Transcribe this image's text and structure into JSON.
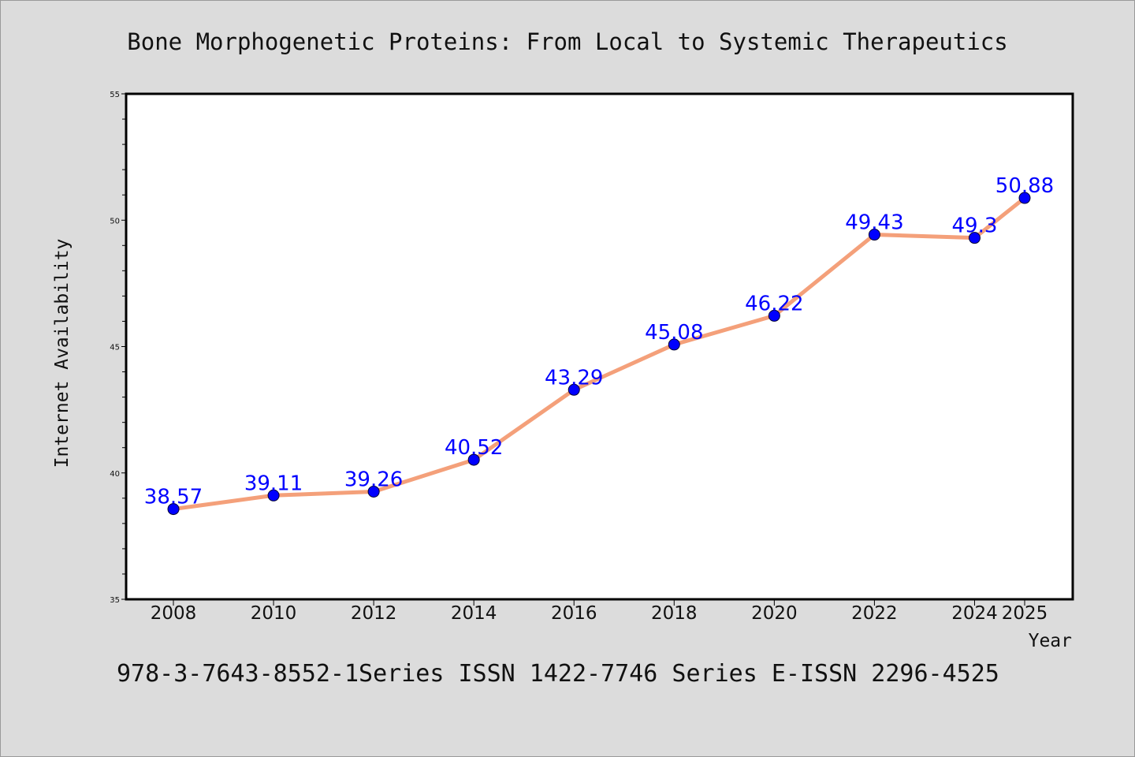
{
  "chart_data": {
    "type": "line",
    "title": "Bone Morphogenetic Proteins: From Local to Systemic Therapeutics",
    "xlabel": "Year",
    "ylabel": "Internet Availability",
    "categories": [
      "2008",
      "2010",
      "2012",
      "2014",
      "2016",
      "2018",
      "2020",
      "2022",
      "2024",
      "2025"
    ],
    "series": [
      {
        "values": [
          38.57,
          39.11,
          39.26,
          40.52,
          43.29,
          45.08,
          46.22,
          49.43,
          49.3,
          50.88
        ],
        "data_labels": [
          "38.57",
          "39.11",
          "39.26",
          "40.52",
          "43.29",
          "45.08",
          "46.22",
          "49.43",
          "49.3",
          "50.88"
        ]
      }
    ],
    "ylim": [
      35,
      55
    ],
    "yticks": [
      "35",
      "40",
      "45",
      "50",
      "55"
    ],
    "grid": false,
    "line_color": "#f4a07a",
    "marker_color": "#0000ff",
    "label_color": "#0000ff"
  },
  "footer_text": "978-3-7643-8552-1Series ISSN 1422-7746 Series E-ISSN 2296-4525",
  "colors": {
    "background": "#dcdcdc",
    "plot_area": "#ffffff",
    "axis": "#000000"
  }
}
